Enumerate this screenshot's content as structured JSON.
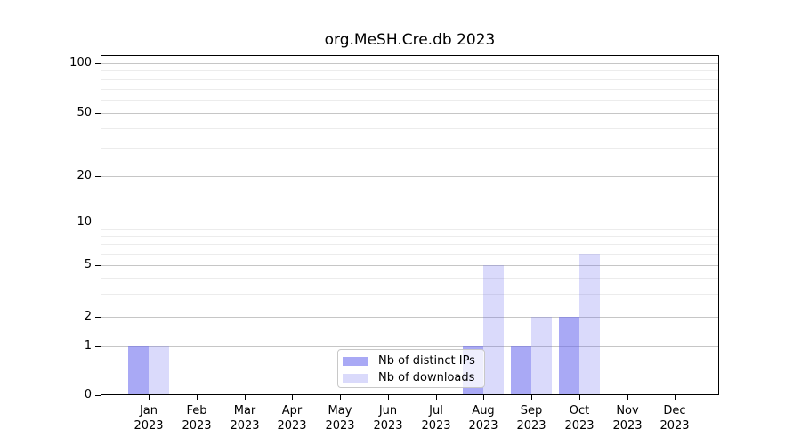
{
  "chart_data": {
    "type": "bar",
    "title": "org.MeSH.Cre.db 2023",
    "categories": [
      "Jan",
      "Feb",
      "Mar",
      "Apr",
      "May",
      "Jun",
      "Jul",
      "Aug",
      "Sep",
      "Oct",
      "Nov",
      "Dec"
    ],
    "category_year": "2023",
    "series": [
      {
        "name": "Nb of distinct IPs",
        "color": "rgba(102,102,238,0.56)",
        "values": [
          1,
          0,
          0,
          0,
          0,
          0,
          0,
          1,
          1,
          2,
          0,
          0
        ]
      },
      {
        "name": "Nb of downloads",
        "color": "rgba(102,102,238,0.24)",
        "values": [
          1,
          0,
          0,
          0,
          0,
          0,
          0,
          5,
          2,
          6,
          0,
          0
        ]
      }
    ],
    "xlabel": "",
    "ylabel": "",
    "y_axis": {
      "scale": "log-like with 0 baseline",
      "tick_values": [
        0,
        1,
        2,
        5,
        10,
        20,
        50,
        100
      ],
      "tick_labels": [
        "0",
        "1",
        "2",
        "5",
        "10",
        "20",
        "50",
        "100"
      ],
      "minor_gridline_values": [
        3,
        4,
        6,
        7,
        8,
        9,
        30,
        40,
        60,
        70,
        80,
        90
      ],
      "range_top": 100
    },
    "legend": {
      "position": "lower-center",
      "entries": [
        "Nb of distinct IPs",
        "Nb of downloads"
      ]
    },
    "grid": "horizontal on",
    "colors": {
      "accent": "#6666ee",
      "grid_major": "#c6c6c6",
      "grid_minor": "#ececec",
      "axis": "#000000",
      "background": "#ffffff"
    }
  }
}
